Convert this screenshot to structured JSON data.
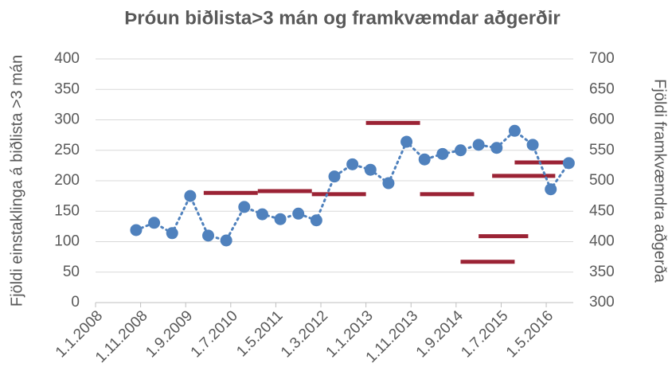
{
  "chart_data": {
    "type": "line",
    "title": "Þróun biðlista>3 mán og framkvæmdar aðgerðir",
    "ylabel": "Fjöldi einstaklinga á biðlista >3 mán",
    "y2label": "Fjöldi framkvæmdra aðgerða",
    "xlim": [
      "1.1.2008",
      "1.11.2016"
    ],
    "xticks": [
      "1.1.2008",
      "1.11.2008",
      "1.9.2009",
      "1.7.2010",
      "1.5.2011",
      "1.3.2012",
      "1.1.2013",
      "1.11.2013",
      "1.9.2014",
      "1.7.2015",
      "1.5.2016"
    ],
    "ylim": [
      0,
      400
    ],
    "yticks": [
      0,
      50,
      100,
      150,
      200,
      250,
      300,
      350,
      400
    ],
    "y2lim": [
      300,
      700
    ],
    "y2ticks": [
      300,
      350,
      400,
      450,
      500,
      550,
      600,
      650,
      700
    ],
    "grid": true,
    "series": [
      {
        "color": "#4f81bd",
        "x": [
          "1.10.2008",
          "1.2.2009",
          "1.6.2009",
          "1.10.2009",
          "1.2.2010",
          "1.6.2010",
          "1.10.2010",
          "1.2.2011",
          "1.6.2011",
          "1.10.2011",
          "1.2.2012",
          "1.6.2012",
          "1.10.2012",
          "1.2.2013",
          "1.6.2013",
          "1.10.2013",
          "1.2.2014",
          "1.6.2014",
          "1.10.2014",
          "1.2.2015",
          "1.6.2015",
          "1.10.2015",
          "1.2.2016",
          "1.6.2016",
          "1.10.2016"
        ],
        "values": [
          119,
          131,
          114,
          175,
          110,
          102,
          157,
          145,
          137,
          146,
          135,
          207,
          227,
          218,
          196,
          264,
          235,
          244,
          250,
          259,
          254,
          282,
          259,
          186,
          229
        ]
      },
      {
        "color": "#9b2335",
        "axis": "y2",
        "x_start": [
          "1.1.2010",
          "1.1.2011",
          "1.1.2012",
          "1.1.2013",
          "1.1.2014",
          "1.10.2014",
          "1.2.2015",
          "1.5.2015",
          "1.10.2015"
        ],
        "x_end": [
          "1.1.2011",
          "1.1.2012",
          "1.1.2013",
          "1.1.2014",
          "1.1.2015",
          "1.10.2015",
          "1.1.2016",
          "1.7.2016",
          "1.10.2016"
        ],
        "values": [
          480,
          483,
          478,
          595,
          478,
          367,
          409,
          508,
          530
        ]
      }
    ]
  }
}
